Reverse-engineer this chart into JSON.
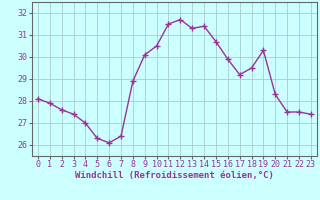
{
  "x": [
    0,
    1,
    2,
    3,
    4,
    5,
    6,
    7,
    8,
    9,
    10,
    11,
    12,
    13,
    14,
    15,
    16,
    17,
    18,
    19,
    20,
    21,
    22,
    23
  ],
  "y": [
    28.1,
    27.9,
    27.6,
    27.4,
    27.0,
    26.3,
    26.1,
    26.4,
    28.9,
    30.1,
    30.5,
    31.5,
    31.7,
    31.3,
    31.4,
    30.7,
    29.9,
    29.2,
    29.5,
    30.3,
    28.3,
    27.5,
    27.5,
    27.4
  ],
  "line_color": "#993399",
  "marker": "+",
  "marker_size": 4,
  "bg_color": "#ccffff",
  "grid_color": "#aacccc",
  "xlabel": "Windchill (Refroidissement éolien,°C)",
  "xlabel_fontsize": 6.5,
  "xlim": [
    -0.5,
    23.5
  ],
  "ylim": [
    25.5,
    32.5
  ],
  "yticks": [
    26,
    27,
    28,
    29,
    30,
    31,
    32
  ],
  "xticks": [
    0,
    1,
    2,
    3,
    4,
    5,
    6,
    7,
    8,
    9,
    10,
    11,
    12,
    13,
    14,
    15,
    16,
    17,
    18,
    19,
    20,
    21,
    22,
    23
  ],
  "tick_fontsize": 6,
  "line_width": 1.0,
  "text_color": "#993399"
}
